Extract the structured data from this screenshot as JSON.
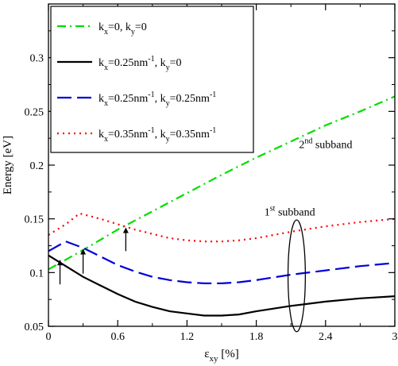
{
  "chart_data": {
    "type": "line",
    "xlabel": "ε",
    "xlabel_sub": "xy",
    "xlabel_unit": " [%]",
    "ylabel": "Energy [eV]",
    "xlim": [
      0,
      3
    ],
    "ylim": [
      0.05,
      0.35
    ],
    "xticks": [
      "0",
      "0.6",
      "1.2",
      "1.8",
      "2.4",
      "3"
    ],
    "xtick_values": [
      0,
      0.6,
      1.2,
      1.8,
      2.4,
      3
    ],
    "yticks": [
      "0.05",
      "0.1",
      "0.15",
      "0.2",
      "0.25",
      "0.3"
    ],
    "ytick_values": [
      0.05,
      0.1,
      0.15,
      0.2,
      0.25,
      0.3
    ],
    "legend_position": "top-left",
    "series": [
      {
        "color": "#00dd00",
        "dash": "dashdot",
        "legend_runs": [
          {
            "t": "k",
            "s": "base"
          },
          {
            "t": "x",
            "s": "sub"
          },
          {
            "t": "=0, k",
            "s": "base"
          },
          {
            "t": "y",
            "s": "sub"
          },
          {
            "t": "=0",
            "s": "base"
          }
        ],
        "x": [
          0,
          0.3,
          0.6,
          0.9,
          1.2,
          1.5,
          1.8,
          2.1,
          2.4,
          2.7,
          3.0
        ],
        "y": [
          0.103,
          0.121,
          0.14,
          0.157,
          0.174,
          0.191,
          0.207,
          0.222,
          0.237,
          0.25,
          0.264
        ]
      },
      {
        "color": "#000000",
        "dash": "solid",
        "legend_runs": [
          {
            "t": "k",
            "s": "base"
          },
          {
            "t": "x",
            "s": "sub"
          },
          {
            "t": "=0.25nm",
            "s": "base"
          },
          {
            "t": "-1",
            "s": "sup"
          },
          {
            "t": ", k",
            "s": "base"
          },
          {
            "t": "y",
            "s": "sub"
          },
          {
            "t": "=0",
            "s": "base"
          }
        ],
        "x": [
          0,
          0.15,
          0.3,
          0.45,
          0.6,
          0.75,
          0.9,
          1.05,
          1.2,
          1.35,
          1.5,
          1.65,
          1.8,
          2.1,
          2.4,
          2.7,
          3.0
        ],
        "y": [
          0.116,
          0.106,
          0.096,
          0.088,
          0.08,
          0.073,
          0.068,
          0.064,
          0.062,
          0.06,
          0.06,
          0.061,
          0.064,
          0.069,
          0.073,
          0.076,
          0.078
        ]
      },
      {
        "color": "#0000dd",
        "dash": "dashed",
        "legend_runs": [
          {
            "t": "k",
            "s": "base"
          },
          {
            "t": "x",
            "s": "sub"
          },
          {
            "t": "=0.25nm",
            "s": "base"
          },
          {
            "t": "-1",
            "s": "sup"
          },
          {
            "t": ", k",
            "s": "base"
          },
          {
            "t": "y",
            "s": "sub"
          },
          {
            "t": "=0.25nm",
            "s": "base"
          },
          {
            "t": "-1",
            "s": "sup"
          }
        ],
        "x": [
          0,
          0.15,
          0.3,
          0.45,
          0.6,
          0.75,
          0.9,
          1.05,
          1.2,
          1.35,
          1.5,
          1.65,
          1.8,
          2.1,
          2.4,
          2.7,
          3.0
        ],
        "y": [
          0.12,
          0.129,
          0.123,
          0.115,
          0.107,
          0.101,
          0.096,
          0.093,
          0.091,
          0.09,
          0.09,
          0.091,
          0.093,
          0.098,
          0.102,
          0.106,
          0.109
        ]
      },
      {
        "color": "#ff0000",
        "dash": "dotted",
        "legend_runs": [
          {
            "t": "k",
            "s": "base"
          },
          {
            "t": "x",
            "s": "sub"
          },
          {
            "t": "=0.35nm",
            "s": "base"
          },
          {
            "t": "-1",
            "s": "sup"
          },
          {
            "t": ", k",
            "s": "base"
          },
          {
            "t": "y",
            "s": "sub"
          },
          {
            "t": "=0.35nm",
            "s": "base"
          },
          {
            "t": "-1",
            "s": "sup"
          }
        ],
        "x": [
          0,
          0.15,
          0.27,
          0.45,
          0.6,
          0.75,
          0.9,
          1.05,
          1.2,
          1.35,
          1.5,
          1.65,
          1.8,
          2.1,
          2.4,
          2.7,
          3.0
        ],
        "y": [
          0.135,
          0.145,
          0.155,
          0.15,
          0.145,
          0.14,
          0.136,
          0.132,
          0.13,
          0.129,
          0.129,
          0.13,
          0.132,
          0.138,
          0.143,
          0.147,
          0.15
        ]
      }
    ],
    "annotations": [
      {
        "runs": [
          {
            "t": "2",
            "s": "base"
          },
          {
            "t": "nd",
            "s": "sup"
          },
          {
            "t": " subband",
            "s": "base"
          }
        ],
        "x": 2.17,
        "y": 0.216
      },
      {
        "runs": [
          {
            "t": "1",
            "s": "base"
          },
          {
            "t": "st",
            "s": "sup"
          },
          {
            "t": " subband",
            "s": "base"
          }
        ],
        "x": 1.87,
        "y": 0.153
      }
    ],
    "arrows": [
      {
        "x": 0.1,
        "y_from": 0.089,
        "y_to": 0.112
      },
      {
        "x": 0.3,
        "y_from": 0.099,
        "y_to": 0.122
      },
      {
        "x": 0.67,
        "y_from": 0.12,
        "y_to": 0.142
      }
    ],
    "ellipse": {
      "cx": 2.15,
      "cy": 0.097,
      "rx": 0.075,
      "ry": 0.052
    }
  }
}
